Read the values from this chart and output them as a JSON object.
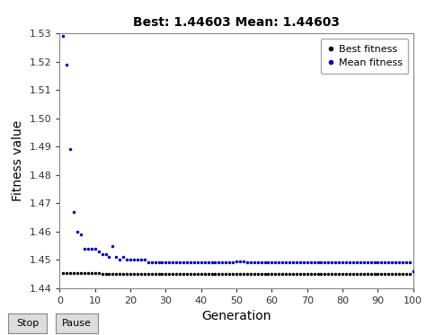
{
  "title": "Best: 1.44603 Mean: 1.44603",
  "xlabel": "Generation",
  "ylabel": "Fitness value",
  "xlim": [
    0,
    100
  ],
  "ylim": [
    1.44,
    1.53
  ],
  "yticks": [
    1.44,
    1.45,
    1.46,
    1.47,
    1.48,
    1.49,
    1.5,
    1.51,
    1.52,
    1.53
  ],
  "xticks": [
    0,
    10,
    20,
    30,
    40,
    50,
    60,
    70,
    80,
    90,
    100
  ],
  "best_color": "#000000",
  "mean_color": "#0000cc",
  "best_x": [
    1,
    2,
    3,
    4,
    5,
    6,
    7,
    8,
    9,
    10,
    11,
    12,
    13,
    14,
    15,
    16,
    17,
    18,
    19,
    20,
    21,
    22,
    23,
    24,
    25,
    26,
    27,
    28,
    29,
    30,
    31,
    32,
    33,
    34,
    35,
    36,
    37,
    38,
    39,
    40,
    41,
    42,
    43,
    44,
    45,
    46,
    47,
    48,
    49,
    50,
    51,
    52,
    53,
    54,
    55,
    56,
    57,
    58,
    59,
    60,
    61,
    62,
    63,
    64,
    65,
    66,
    67,
    68,
    69,
    70,
    71,
    72,
    73,
    74,
    75,
    76,
    77,
    78,
    79,
    80,
    81,
    82,
    83,
    84,
    85,
    86,
    87,
    88,
    89,
    90,
    91,
    92,
    93,
    94,
    95,
    96,
    97,
    98,
    99,
    100
  ],
  "best_y": [
    1.4454,
    1.4454,
    1.4454,
    1.4454,
    1.4454,
    1.4454,
    1.4453,
    1.4453,
    1.4453,
    1.4452,
    1.4452,
    1.4451,
    1.4451,
    1.4451,
    1.4451,
    1.4451,
    1.445,
    1.445,
    1.445,
    1.445,
    1.445,
    1.445,
    1.445,
    1.445,
    1.4449,
    1.4449,
    1.4449,
    1.4449,
    1.4449,
    1.4449,
    1.4449,
    1.4449,
    1.4449,
    1.4449,
    1.4449,
    1.4449,
    1.4449,
    1.4449,
    1.4449,
    1.4449,
    1.4449,
    1.4449,
    1.4449,
    1.4449,
    1.4449,
    1.4449,
    1.4449,
    1.4449,
    1.4449,
    1.4449,
    1.4449,
    1.4449,
    1.4449,
    1.4449,
    1.4449,
    1.4449,
    1.4449,
    1.4449,
    1.4449,
    1.4449,
    1.4449,
    1.4449,
    1.4449,
    1.4449,
    1.4449,
    1.4449,
    1.4449,
    1.4449,
    1.4449,
    1.4449,
    1.4449,
    1.4449,
    1.4449,
    1.4449,
    1.4449,
    1.4449,
    1.4449,
    1.4449,
    1.4449,
    1.4449,
    1.4449,
    1.4449,
    1.4449,
    1.4449,
    1.4449,
    1.4449,
    1.4449,
    1.4449,
    1.4449,
    1.4449,
    1.4449,
    1.4449,
    1.4449,
    1.4449,
    1.4449,
    1.4449,
    1.4449,
    1.4449,
    1.4449,
    1.446
  ],
  "mean_x": [
    1,
    2,
    3,
    4,
    5,
    6,
    7,
    8,
    9,
    10,
    11,
    12,
    13,
    14,
    15,
    16,
    17,
    18,
    19,
    20,
    21,
    22,
    23,
    24,
    25,
    26,
    27,
    28,
    29,
    30,
    31,
    32,
    33,
    34,
    35,
    36,
    37,
    38,
    39,
    40,
    41,
    42,
    43,
    44,
    45,
    46,
    47,
    48,
    49,
    50,
    51,
    52,
    53,
    54,
    55,
    56,
    57,
    58,
    59,
    60,
    61,
    62,
    63,
    64,
    65,
    66,
    67,
    68,
    69,
    70,
    71,
    72,
    73,
    74,
    75,
    76,
    77,
    78,
    79,
    80,
    81,
    82,
    83,
    84,
    85,
    86,
    87,
    88,
    89,
    90,
    91,
    92,
    93,
    94,
    95,
    96,
    97,
    98,
    99,
    100
  ],
  "mean_y": [
    1.529,
    1.519,
    1.489,
    1.467,
    1.46,
    1.459,
    1.454,
    1.454,
    1.454,
    1.454,
    1.453,
    1.452,
    1.452,
    1.451,
    1.455,
    1.451,
    1.45,
    1.451,
    1.45,
    1.45,
    1.45,
    1.45,
    1.45,
    1.45,
    1.449,
    1.449,
    1.449,
    1.449,
    1.449,
    1.449,
    1.449,
    1.449,
    1.449,
    1.449,
    1.449,
    1.449,
    1.449,
    1.449,
    1.449,
    1.449,
    1.449,
    1.449,
    1.449,
    1.449,
    1.449,
    1.449,
    1.449,
    1.449,
    1.449,
    1.4495,
    1.4495,
    1.4495,
    1.449,
    1.449,
    1.449,
    1.449,
    1.449,
    1.449,
    1.449,
    1.449,
    1.449,
    1.449,
    1.449,
    1.449,
    1.449,
    1.449,
    1.449,
    1.449,
    1.449,
    1.449,
    1.449,
    1.449,
    1.449,
    1.449,
    1.449,
    1.449,
    1.449,
    1.449,
    1.449,
    1.449,
    1.449,
    1.449,
    1.449,
    1.449,
    1.449,
    1.449,
    1.449,
    1.449,
    1.449,
    1.449,
    1.449,
    1.449,
    1.449,
    1.449,
    1.449,
    1.449,
    1.449,
    1.449,
    1.449,
    1.446
  ],
  "legend_labels": [
    "Best fitness",
    "Mean fitness"
  ],
  "button_labels": [
    "Stop",
    "Pause"
  ]
}
